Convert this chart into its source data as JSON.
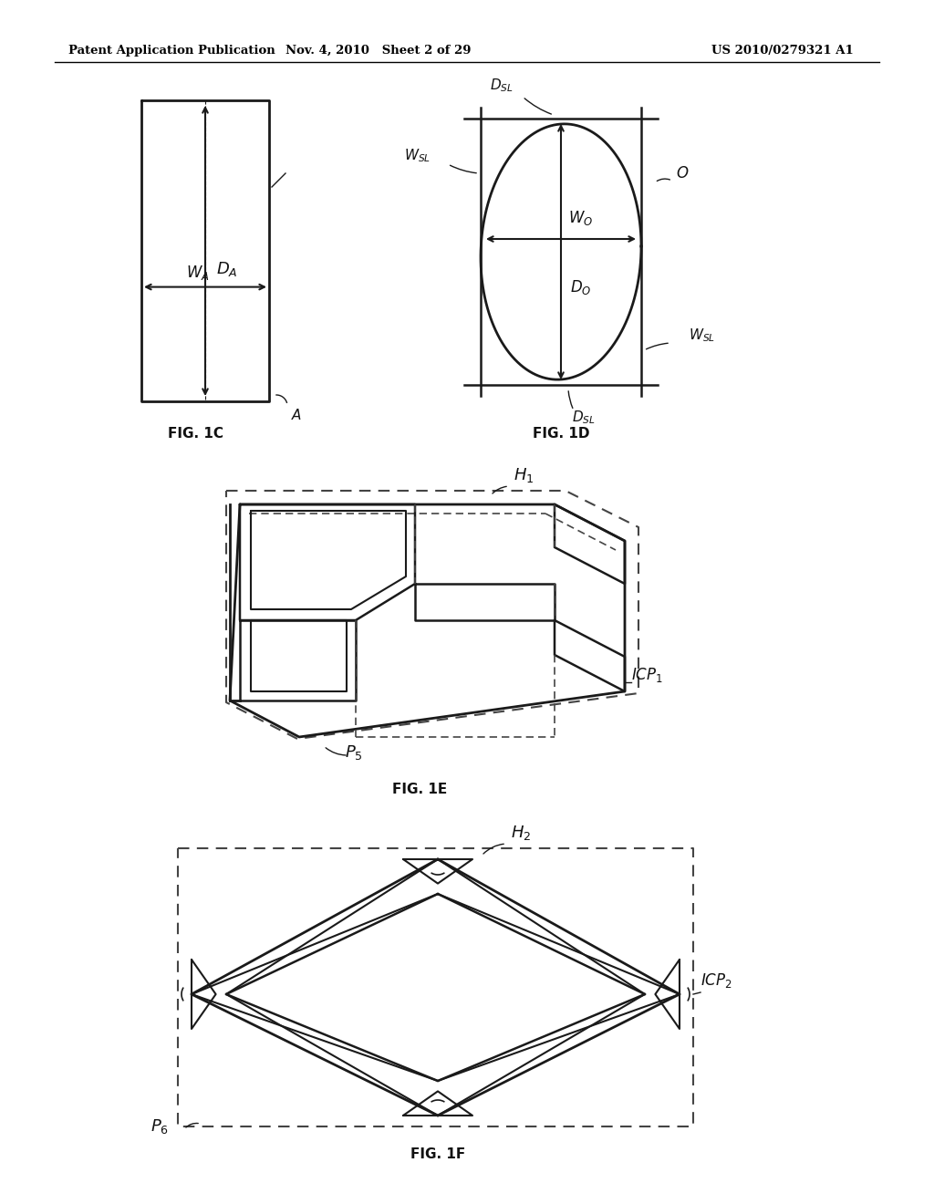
{
  "bg_color": "#ffffff",
  "header_left": "Patent Application Publication",
  "header_mid": "Nov. 4, 2010   Sheet 2 of 29",
  "header_right": "US 2010/0279321 A1",
  "line_color": "#1a1a1a",
  "dashed_color": "#444444",
  "text_color": "#111111"
}
